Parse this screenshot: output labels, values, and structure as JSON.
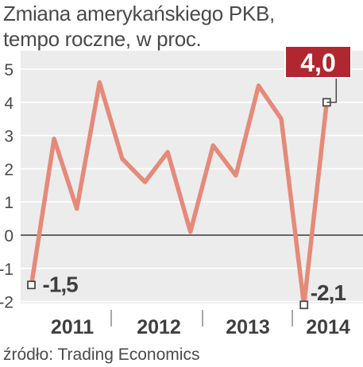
{
  "title": "Zmiana amerykańskiego PKB,",
  "subtitle": "tempo roczne, w proc.",
  "source": "źródło: Trading Economics",
  "colors": {
    "line": "#e58a7a",
    "plot_background": "#ececec",
    "badge": "#b0272f",
    "text": "#4a4a4a"
  },
  "chart_data": {
    "type": "line",
    "title": "Zmiana amerykańskiego PKB,",
    "subtitle": "tempo roczne, w proc.",
    "xlabel": "",
    "ylabel": "",
    "ylim": [
      -2,
      5
    ],
    "yticks": [
      -2,
      -1,
      0,
      1,
      2,
      3,
      4,
      5
    ],
    "grid": true,
    "years": [
      "2011",
      "2012",
      "2013",
      "2014"
    ],
    "values": [
      -1.5,
      2.9,
      0.8,
      4.6,
      2.3,
      1.6,
      2.5,
      0.1,
      2.7,
      1.8,
      4.5,
      3.5,
      -2.1,
      4.0
    ],
    "annotations": {
      "first": "-1,5",
      "min": "-2,1",
      "last": "4,0"
    }
  }
}
